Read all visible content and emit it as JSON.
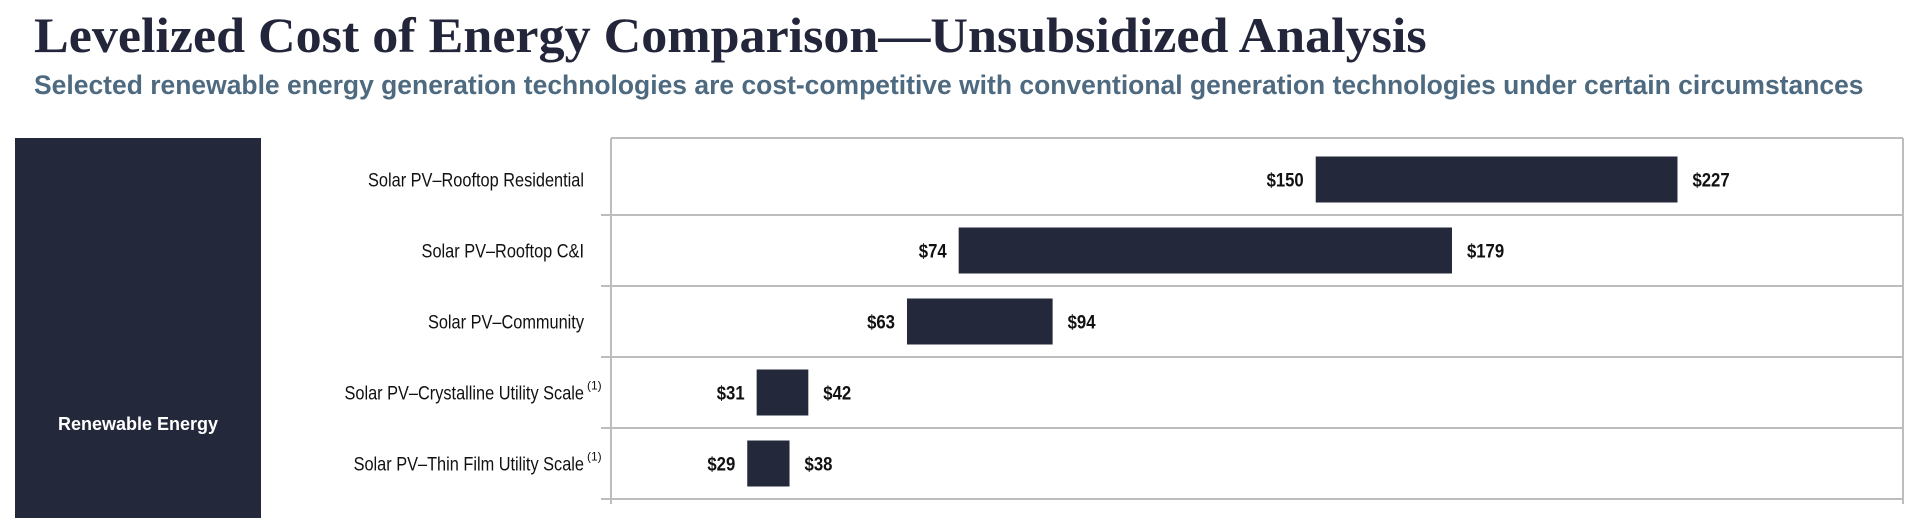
{
  "title": "Levelized Cost of Energy Comparison—Unsubsidized Analysis",
  "subtitle": "Selected renewable energy generation technologies are cost-competitive with conventional generation technologies under certain circumstances",
  "panel_label": "Renewable Energy",
  "colors": {
    "bar": "#23283b",
    "panel": "#23283b",
    "title": "#23263a",
    "subtitle": "#4d6a80",
    "grid": "#bdbdbd"
  },
  "chart_data": {
    "type": "bar",
    "orientation": "horizontal-range",
    "group": "Renewable Energy",
    "categories": [
      "Solar PV–Rooftop Residential",
      "Solar PV–Rooftop C&I",
      "Solar PV–Community",
      "Solar PV–Crystalline Utility Scale",
      "Solar PV–Thin Film Utility Scale"
    ],
    "footnotes": [
      "",
      "",
      "",
      "(1)",
      "(1)"
    ],
    "low": [
      150,
      74,
      63,
      31,
      29
    ],
    "high": [
      227,
      179,
      94,
      42,
      38
    ],
    "low_labels": [
      "$150",
      "$74",
      "$63",
      "$31",
      "$29"
    ],
    "high_labels": [
      "$227",
      "$179",
      "$94",
      "$42",
      "$38"
    ],
    "xlim": [
      0,
      275
    ],
    "grid": "horizontal row dividers"
  }
}
